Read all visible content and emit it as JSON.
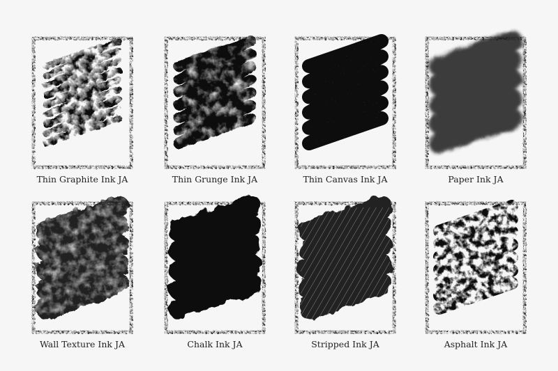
{
  "brushes": [
    {
      "label": "Thin Graphite Ink JA"
    },
    {
      "label": "Thin Grunge Ink JA"
    },
    {
      "label": "Thin Canvas Ink JA"
    },
    {
      "label": "Paper Ink JA"
    },
    {
      "label": "Wall Texture Ink JA"
    },
    {
      "label": "Chalk Ink JA"
    },
    {
      "label": "Stripped Ink JA"
    },
    {
      "label": "Asphalt Ink JA"
    }
  ]
}
